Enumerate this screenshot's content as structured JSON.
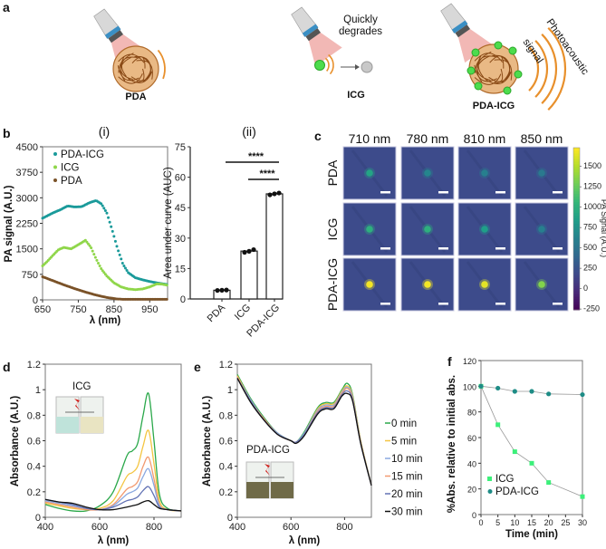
{
  "panel_a": {
    "label": "a",
    "pda": "PDA",
    "icg": "ICG",
    "pdaicg": "PDA-ICG",
    "degrade_1": "Quickly",
    "degrade_2": "degrades",
    "pa_1": "Photoacoustic",
    "pa_2": "signal",
    "colors": {
      "brown": "#b06a2a",
      "green": "#4ddc4d",
      "orange": "#e8902c",
      "red": "#d9342b",
      "gray": "#c8c8c8"
    }
  },
  "chart_data": [
    {
      "panel": "b",
      "title": "(i)",
      "type": "scatter",
      "xlabel": "λ (nm)",
      "ylabel": "PA signal (A.U.)",
      "xlim": [
        650,
        1000
      ],
      "ylim": [
        0,
        4500
      ],
      "xticks": [
        650,
        750,
        850,
        950
      ],
      "yticks": [
        0,
        750,
        1500,
        2250,
        3000,
        3750,
        4500
      ],
      "legend_position": "top-left",
      "series": [
        {
          "name": "PDA-ICG",
          "color": "#1a9a9a",
          "x": [
            650,
            680,
            700,
            720,
            740,
            760,
            780,
            800,
            815,
            830,
            845,
            860,
            875,
            890,
            910,
            930,
            950,
            975,
            1000
          ],
          "y": [
            2400,
            2560,
            2650,
            2760,
            2730,
            2740,
            2850,
            2920,
            2820,
            2550,
            2050,
            1500,
            1050,
            800,
            650,
            590,
            540,
            490,
            450
          ]
        },
        {
          "name": "ICG",
          "color": "#8fd64a",
          "x": [
            650,
            665,
            680,
            695,
            710,
            730,
            750,
            770,
            785,
            800,
            815,
            830,
            850,
            870,
            890,
            910,
            930,
            950,
            970,
            985,
            1000
          ],
          "y": [
            1000,
            1150,
            1320,
            1480,
            1540,
            1500,
            1620,
            1750,
            1550,
            1200,
            900,
            700,
            500,
            380,
            320,
            300,
            320,
            380,
            470,
            460,
            430
          ]
        },
        {
          "name": "PDA",
          "color": "#7a5228",
          "x": [
            650,
            680,
            710,
            740,
            770,
            800,
            830,
            860,
            880,
            900,
            1000
          ],
          "y": [
            680,
            560,
            440,
            330,
            230,
            140,
            70,
            25,
            15,
            15,
            15
          ]
        }
      ]
    },
    {
      "panel": "b",
      "title": "(ii)",
      "type": "bar",
      "ylabel": "Area under curve (AUC)",
      "ylim": [
        0,
        75
      ],
      "yticks": [
        0,
        15,
        30,
        45,
        60,
        75
      ],
      "categories": [
        "PDA",
        "ICG",
        "PDA-ICG"
      ],
      "values": [
        4.3,
        23.6,
        51.8
      ],
      "points": [
        [
          4.2,
          4.3,
          4.4
        ],
        [
          23.0,
          23.5,
          24.3
        ],
        [
          51.3,
          51.8,
          52.2
        ]
      ],
      "significance": [
        {
          "from": "PDA",
          "to": "PDA-ICG",
          "label": "****"
        },
        {
          "from": "ICG",
          "to": "PDA-ICG",
          "label": "****"
        }
      ]
    },
    {
      "panel": "c",
      "type": "heatmap",
      "columns": [
        "710 nm",
        "780 nm",
        "810 nm",
        "850 nm"
      ],
      "rows": [
        "PDA",
        "ICG",
        "PDA-ICG"
      ],
      "center_signal": [
        [
          900,
          650,
          600,
          550
        ],
        [
          1000,
          1000,
          850,
          600
        ],
        [
          1700,
          1700,
          1650,
          1350
        ]
      ],
      "colorbar_label": "PA Signal (A.U.)",
      "colorbar_range": [
        -260,
        1730
      ],
      "colorbar_ticks": [
        -250,
        0,
        250,
        500,
        750,
        1000,
        1250,
        1500
      ]
    },
    {
      "panel": "d",
      "type": "line",
      "inset_label": "ICG",
      "xlabel": "λ (nm)",
      "ylabel": "Absorbance (A.U.)",
      "xlim": [
        400,
        900
      ],
      "ylim": [
        0,
        1.2
      ],
      "xticks": [
        400,
        600,
        800
      ],
      "yticks": [
        0,
        0.2,
        0.4,
        0.6,
        0.8,
        1,
        1.2
      ],
      "x": [
        400,
        450,
        500,
        550,
        600,
        650,
        700,
        720,
        740,
        760,
        780,
        800,
        820,
        850,
        900
      ],
      "series": [
        {
          "name": "0 min",
          "color": "#2aa84a",
          "values": [
            0.1,
            0.07,
            0.05,
            0.05,
            0.09,
            0.2,
            0.48,
            0.52,
            0.58,
            0.8,
            0.97,
            0.6,
            0.18,
            0.07,
            0.05
          ]
        },
        {
          "name": "5 min",
          "color": "#f4c542",
          "values": [
            0.11,
            0.09,
            0.07,
            0.06,
            0.07,
            0.13,
            0.32,
            0.35,
            0.4,
            0.56,
            0.68,
            0.42,
            0.13,
            0.06,
            0.05
          ]
        },
        {
          "name": "10 min",
          "color": "#f29a70",
          "values": [
            0.12,
            0.1,
            0.08,
            0.06,
            0.06,
            0.1,
            0.22,
            0.24,
            0.28,
            0.4,
            0.47,
            0.3,
            0.1,
            0.06,
            0.05
          ]
        },
        {
          "name": "15 min",
          "color": "#8aa8e0",
          "values": [
            0.13,
            0.11,
            0.09,
            0.07,
            0.06,
            0.09,
            0.18,
            0.2,
            0.23,
            0.32,
            0.38,
            0.25,
            0.09,
            0.06,
            0.05
          ]
        },
        {
          "name": "20 min",
          "color": "#6272b4",
          "values": [
            0.14,
            0.12,
            0.1,
            0.07,
            0.06,
            0.08,
            0.13,
            0.14,
            0.16,
            0.21,
            0.24,
            0.17,
            0.08,
            0.06,
            0.05
          ]
        },
        {
          "name": "30 min",
          "color": "#111111",
          "values": [
            0.14,
            0.12,
            0.11,
            0.08,
            0.06,
            0.06,
            0.08,
            0.09,
            0.1,
            0.12,
            0.13,
            0.1,
            0.07,
            0.06,
            0.05
          ]
        }
      ]
    },
    {
      "panel": "e",
      "type": "line",
      "inset_label": "PDA-ICG",
      "xlabel": "λ (nm)",
      "ylabel": "Absorbance (A.U.)",
      "xlim": [
        400,
        900
      ],
      "ylim": [
        0,
        1.2
      ],
      "xticks": [
        400,
        600,
        800
      ],
      "yticks": [
        0,
        0.2,
        0.4,
        0.6,
        0.8,
        1,
        1.2
      ],
      "legend_position": "right",
      "x": [
        400,
        450,
        500,
        550,
        600,
        620,
        650,
        700,
        730,
        760,
        790,
        810,
        830,
        860,
        900
      ],
      "series": [
        {
          "name": "0 min",
          "color": "#2aa84a",
          "values": [
            1.12,
            0.93,
            0.78,
            0.66,
            0.6,
            0.59,
            0.67,
            0.86,
            0.9,
            0.9,
            1.0,
            1.05,
            0.96,
            0.6,
            0.25
          ]
        },
        {
          "name": "5 min",
          "color": "#f4c542",
          "values": [
            1.11,
            0.92,
            0.77,
            0.66,
            0.6,
            0.59,
            0.66,
            0.85,
            0.89,
            0.89,
            0.99,
            1.03,
            0.95,
            0.6,
            0.25
          ]
        },
        {
          "name": "10 min",
          "color": "#8aa8e0",
          "values": [
            1.1,
            0.92,
            0.77,
            0.66,
            0.6,
            0.59,
            0.66,
            0.84,
            0.88,
            0.88,
            0.98,
            1.02,
            0.94,
            0.59,
            0.25
          ]
        },
        {
          "name": "15 min",
          "color": "#f29a70",
          "values": [
            1.1,
            0.91,
            0.77,
            0.65,
            0.6,
            0.59,
            0.65,
            0.83,
            0.87,
            0.87,
            0.97,
            1.01,
            0.93,
            0.59,
            0.25
          ]
        },
        {
          "name": "20 min",
          "color": "#6272b4",
          "values": [
            1.09,
            0.91,
            0.76,
            0.65,
            0.6,
            0.59,
            0.65,
            0.82,
            0.86,
            0.86,
            0.96,
            0.99,
            0.92,
            0.58,
            0.25
          ]
        },
        {
          "name": "30 min",
          "color": "#111111",
          "values": [
            1.09,
            0.9,
            0.76,
            0.65,
            0.6,
            0.58,
            0.64,
            0.81,
            0.85,
            0.85,
            0.95,
            0.97,
            0.91,
            0.58,
            0.25
          ]
        }
      ]
    },
    {
      "panel": "f",
      "type": "line",
      "xlabel": "Time (min)",
      "ylabel": "%Abs. relative to initial abs.",
      "xlim": [
        0,
        30
      ],
      "ylim": [
        0,
        120
      ],
      "xticks": [
        0,
        5,
        10,
        15,
        20,
        25,
        30
      ],
      "yticks": [
        0,
        20,
        40,
        60,
        80,
        100,
        120
      ],
      "legend_position": "bottom-left",
      "x": [
        0,
        5,
        10,
        15,
        20,
        30
      ],
      "series": [
        {
          "name": "ICG",
          "color": "#3cf07a",
          "marker": "square",
          "values": [
            100,
            70,
            49,
            40,
            25,
            14
          ]
        },
        {
          "name": "PDA-ICG",
          "color": "#1e8c86",
          "marker": "circle",
          "values": [
            100,
            98.5,
            96,
            96,
            94,
            93.5
          ]
        }
      ]
    }
  ]
}
